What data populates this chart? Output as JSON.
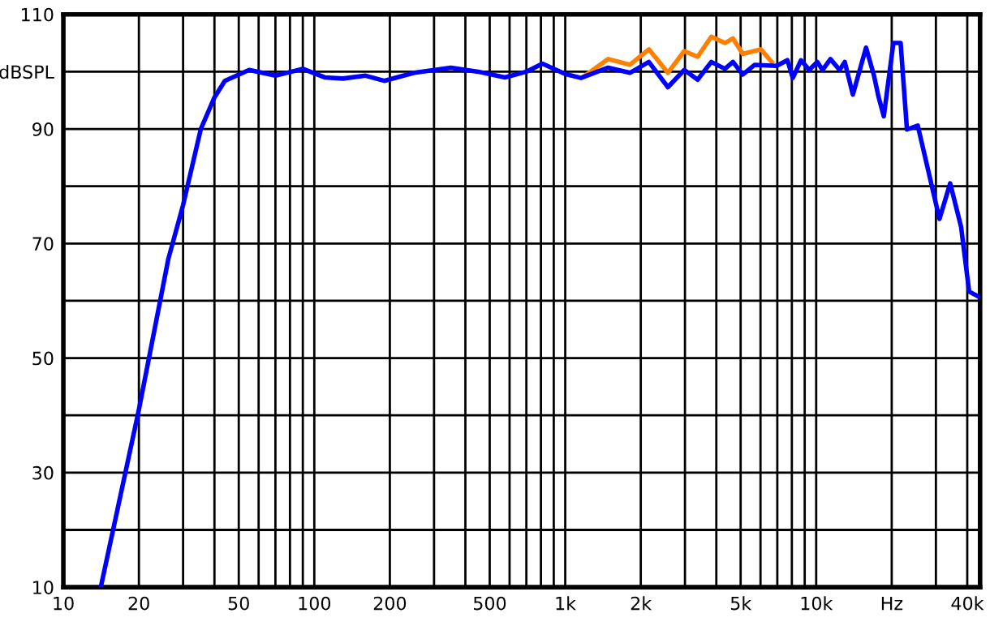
{
  "chart_data": {
    "type": "line",
    "log": "x",
    "grid": true,
    "line_style": "solid",
    "marker": "none",
    "xlim": [
      10,
      45000
    ],
    "ylim": [
      10,
      110
    ],
    "xticks": [
      10,
      20,
      {
        "value": 30,
        "label": null
      },
      {
        "value": 40,
        "label": null
      },
      50,
      {
        "value": 60,
        "label": null
      },
      {
        "value": 70,
        "label": null
      },
      {
        "value": 80,
        "label": null
      },
      {
        "value": 90,
        "label": null
      },
      100,
      200,
      {
        "value": 300,
        "label": null
      },
      {
        "value": 400,
        "label": null
      },
      500,
      {
        "value": 600,
        "label": null
      },
      {
        "value": 700,
        "label": null
      },
      {
        "value": 800,
        "label": null
      },
      {
        "value": 900,
        "label": null
      },
      {
        "value": 1000,
        "label": "1k"
      },
      {
        "value": 2000,
        "label": "2k"
      },
      {
        "value": 3000,
        "label": null
      },
      {
        "value": 4000,
        "label": null
      },
      {
        "value": 5000,
        "label": "5k"
      },
      {
        "value": 6000,
        "label": null
      },
      {
        "value": 7000,
        "label": null
      },
      {
        "value": 8000,
        "label": null
      },
      {
        "value": 9000,
        "label": null
      },
      {
        "value": 10000,
        "label": "10k"
      },
      {
        "value": 20000,
        "label": "Hz"
      },
      {
        "value": 30000,
        "label": null
      },
      {
        "value": 40000,
        "label": "40k"
      }
    ],
    "yticks": [
      10,
      {
        "value": 20,
        "label": null
      },
      30,
      {
        "value": 40,
        "label": null
      },
      50,
      {
        "value": 60,
        "label": null
      },
      70,
      {
        "value": 80,
        "label": null
      },
      90,
      {
        "value": 100,
        "label": "dBSPL"
      },
      110
    ],
    "series": [
      {
        "color": "#ff8000",
        "x": [
          1200,
          1482,
          1810,
          2154,
          2565,
          2980,
          3370,
          3820,
          4330,
          4660,
          5100,
          6020,
          6650
        ],
        "values": [
          99.3,
          102.2,
          101.2,
          103.9,
          99.8,
          103.6,
          102.6,
          106.1,
          105,
          105.8,
          103.1,
          103.9,
          101.7
        ]
      },
      {
        "color": "#0000ff",
        "x": [
          14.1,
          20,
          26.2,
          30,
          35.3,
          40,
          44,
          55,
          70,
          90,
          110,
          130,
          160,
          190,
          250,
          350,
          450,
          575,
          700,
          811,
          1000,
          1155,
          1482,
          1810,
          2154,
          2565,
          2980,
          3370,
          3820,
          4330,
          4660,
          5100,
          5690,
          6950,
          7680,
          8070,
          8700,
          9380,
          10100,
          10600,
          11400,
          12400,
          13000,
          14000,
          15800,
          17000,
          17700,
          18600,
          20300,
          21700,
          23000,
          25400,
          31000,
          34200,
          37800,
          40700,
          45000
        ],
        "values": [
          10,
          41,
          67.3,
          76.7,
          90,
          95.5,
          98.4,
          100.3,
          99.3,
          100.5,
          99,
          98.8,
          99.3,
          98.4,
          99.8,
          100.7,
          100,
          99,
          100,
          101.4,
          99.6,
          98.9,
          100.7,
          99.8,
          101.7,
          97.3,
          100.3,
          98.6,
          101.7,
          100.5,
          101.7,
          99.5,
          101.2,
          101,
          102,
          98.9,
          102,
          100.3,
          101.7,
          100.3,
          102.2,
          100.3,
          101.7,
          96,
          104.2,
          99.3,
          95.7,
          92.2,
          105,
          105,
          89.9,
          90.6,
          74.3,
          80.5,
          72.9,
          61.6,
          60.6
        ]
      }
    ]
  }
}
